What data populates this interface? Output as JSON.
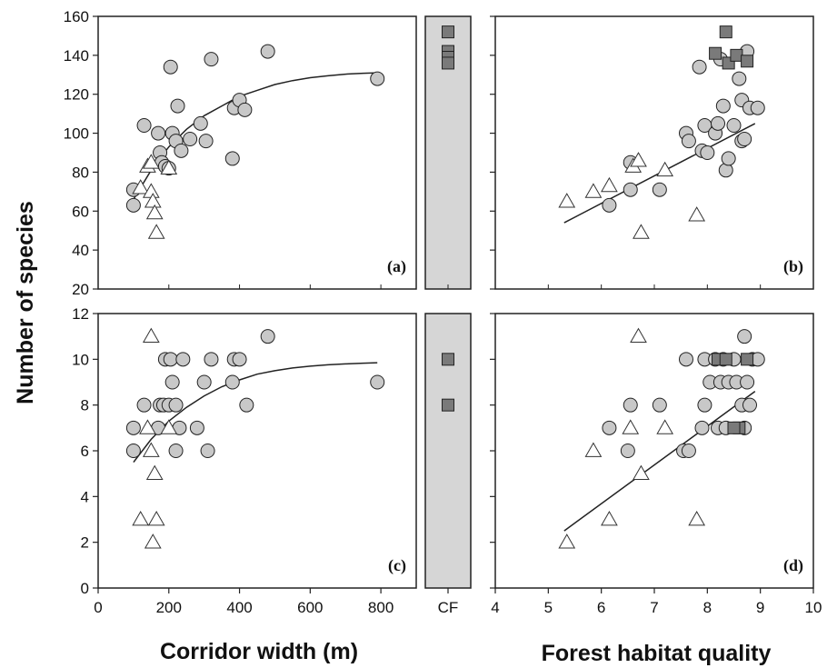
{
  "chart_data": [
    {
      "panel": "(a)",
      "type": "scatter",
      "xlabel": "Corridor width (m)",
      "ylabel": "Number of species",
      "xlim": [
        0,
        900
      ],
      "ylim": [
        20,
        160
      ],
      "xticks": [
        "0",
        "200",
        "400",
        "600",
        "800"
      ],
      "yticks": [
        "20",
        "40",
        "60",
        "80",
        "100",
        "120",
        "140",
        "160"
      ],
      "series": [
        {
          "marker": "circle",
          "color": "#c8c8c8",
          "points": [
            [
              100,
              71
            ],
            [
              100,
              63
            ],
            [
              130,
              104
            ],
            [
              170,
              100
            ],
            [
              175,
              90
            ],
            [
              180,
              85
            ],
            [
              190,
              83
            ],
            [
              200,
              82
            ],
            [
              205,
              134
            ],
            [
              210,
              100
            ],
            [
              220,
              96
            ],
            [
              225,
              114
            ],
            [
              235,
              91
            ],
            [
              260,
              97
            ],
            [
              290,
              105
            ],
            [
              305,
              96
            ],
            [
              320,
              138
            ],
            [
              380,
              87
            ],
            [
              385,
              113
            ],
            [
              400,
              117
            ],
            [
              415,
              112
            ],
            [
              480,
              142
            ],
            [
              790,
              128
            ]
          ]
        },
        {
          "marker": "triangle",
          "color": "#ffffff",
          "points": [
            [
              120,
              72
            ],
            [
              140,
              83
            ],
            [
              150,
              85
            ],
            [
              150,
              70
            ],
            [
              155,
              65
            ],
            [
              160,
              59
            ],
            [
              165,
              49
            ],
            [
              200,
              82
            ]
          ]
        }
      ],
      "fit": {
        "kind": "saturating",
        "x": [
          100,
          150,
          200,
          250,
          300,
          350,
          400,
          450,
          500,
          550,
          600,
          650,
          700,
          750,
          790
        ],
        "y": [
          66,
          81,
          93,
          102,
          109,
          114,
          119,
          122,
          125,
          127,
          128.5,
          129.5,
          130.3,
          130.8,
          131
        ]
      }
    },
    {
      "panel": "CF",
      "type": "scatter",
      "xticks": [
        "CF"
      ],
      "ylim": [
        20,
        160
      ],
      "series": [
        {
          "marker": "square",
          "color": "#7a7a7a",
          "points": [
            [
              0,
              152
            ],
            [
              0,
              142
            ],
            [
              0,
              139
            ],
            [
              0,
              136
            ]
          ]
        }
      ]
    },
    {
      "panel": "(b)",
      "type": "scatter",
      "xlabel": "Forest habitat quality",
      "xlim": [
        4,
        10
      ],
      "ylim": [
        20,
        160
      ],
      "xticks": [
        "4",
        "5",
        "6",
        "7",
        "8",
        "9",
        "10"
      ],
      "series": [
        {
          "marker": "circle",
          "color": "#c8c8c8",
          "points": [
            [
              6.15,
              63
            ],
            [
              6.55,
              85
            ],
            [
              6.55,
              71
            ],
            [
              7.1,
              71
            ],
            [
              7.6,
              100
            ],
            [
              7.65,
              96
            ],
            [
              7.85,
              134
            ],
            [
              7.9,
              91
            ],
            [
              7.95,
              104
            ],
            [
              8.0,
              90
            ],
            [
              8.15,
              100
            ],
            [
              8.2,
              105
            ],
            [
              8.25,
              138
            ],
            [
              8.3,
              114
            ],
            [
              8.35,
              81
            ],
            [
              8.4,
              87
            ],
            [
              8.5,
              104
            ],
            [
              8.6,
              128
            ],
            [
              8.65,
              117
            ],
            [
              8.65,
              96
            ],
            [
              8.7,
              97
            ],
            [
              8.75,
              142
            ],
            [
              8.8,
              113
            ],
            [
              8.95,
              113
            ]
          ]
        },
        {
          "marker": "triangle",
          "color": "#ffffff",
          "points": [
            [
              5.35,
              65
            ],
            [
              5.85,
              70
            ],
            [
              6.15,
              73
            ],
            [
              6.6,
              83
            ],
            [
              6.7,
              86
            ],
            [
              6.75,
              49
            ],
            [
              7.2,
              81
            ],
            [
              7.8,
              58
            ]
          ]
        },
        {
          "marker": "square",
          "color": "#7a7a7a",
          "points": [
            [
              8.15,
              141
            ],
            [
              8.35,
              152
            ],
            [
              8.4,
              136
            ],
            [
              8.55,
              140
            ],
            [
              8.75,
              137
            ]
          ]
        }
      ],
      "fit": {
        "kind": "linear",
        "x": [
          5.3,
          8.9
        ],
        "y": [
          54,
          105
        ]
      }
    },
    {
      "panel": "(c)",
      "type": "scatter",
      "xlabel": "Corridor width (m)",
      "ylabel": "Number of species",
      "xlim": [
        0,
        900
      ],
      "ylim": [
        0,
        12
      ],
      "xticks": [
        "0",
        "200",
        "400",
        "600",
        "800"
      ],
      "yticks": [
        "0",
        "2",
        "4",
        "6",
        "8",
        "10",
        "12"
      ],
      "series": [
        {
          "marker": "circle",
          "color": "#c8c8c8",
          "points": [
            [
              100,
              7
            ],
            [
              100,
              6
            ],
            [
              130,
              8
            ],
            [
              170,
              7
            ],
            [
              175,
              8
            ],
            [
              185,
              8
            ],
            [
              190,
              10
            ],
            [
              200,
              8
            ],
            [
              205,
              10
            ],
            [
              210,
              9
            ],
            [
              220,
              8
            ],
            [
              220,
              6
            ],
            [
              230,
              7
            ],
            [
              240,
              10
            ],
            [
              280,
              7
            ],
            [
              300,
              9
            ],
            [
              310,
              6
            ],
            [
              320,
              10
            ],
            [
              380,
              9
            ],
            [
              385,
              10
            ],
            [
              400,
              10
            ],
            [
              420,
              8
            ],
            [
              480,
              11
            ],
            [
              790,
              9
            ]
          ]
        },
        {
          "marker": "triangle",
          "color": "#ffffff",
          "points": [
            [
              120,
              3
            ],
            [
              140,
              7
            ],
            [
              150,
              11
            ],
            [
              150,
              6
            ],
            [
              155,
              2
            ],
            [
              160,
              5
            ],
            [
              165,
              3
            ],
            [
              200,
              7
            ]
          ]
        }
      ],
      "fit": {
        "kind": "saturating",
        "x": [
          100,
          150,
          200,
          250,
          300,
          350,
          400,
          450,
          500,
          550,
          600,
          650,
          700,
          750,
          790
        ],
        "y": [
          5.5,
          6.5,
          7.3,
          7.9,
          8.4,
          8.8,
          9.1,
          9.35,
          9.5,
          9.62,
          9.7,
          9.76,
          9.8,
          9.83,
          9.85
        ]
      }
    },
    {
      "panel": "CF",
      "type": "scatter",
      "xticks": [
        "CF"
      ],
      "ylim": [
        0,
        12
      ],
      "series": [
        {
          "marker": "square",
          "color": "#7a7a7a",
          "points": [
            [
              0,
              10
            ],
            [
              0,
              8
            ]
          ]
        }
      ]
    },
    {
      "panel": "(d)",
      "type": "scatter",
      "xlabel": "Forest habitat quality",
      "xlim": [
        4,
        10
      ],
      "ylim": [
        0,
        12
      ],
      "xticks": [
        "4",
        "5",
        "6",
        "7",
        "8",
        "9",
        "10"
      ],
      "series": [
        {
          "marker": "circle",
          "color": "#c8c8c8",
          "points": [
            [
              6.15,
              7
            ],
            [
              6.55,
              8
            ],
            [
              6.5,
              6
            ],
            [
              7.1,
              8
            ],
            [
              7.6,
              10
            ],
            [
              7.55,
              6
            ],
            [
              7.65,
              6
            ],
            [
              7.9,
              7
            ],
            [
              7.95,
              8
            ],
            [
              7.95,
              10
            ],
            [
              8.05,
              9
            ],
            [
              8.15,
              10
            ],
            [
              8.2,
              7
            ],
            [
              8.25,
              9
            ],
            [
              8.3,
              10
            ],
            [
              8.35,
              7
            ],
            [
              8.4,
              9
            ],
            [
              8.5,
              10
            ],
            [
              8.55,
              9
            ],
            [
              8.65,
              8
            ],
            [
              8.7,
              11
            ],
            [
              8.7,
              7
            ],
            [
              8.75,
              9
            ],
            [
              8.8,
              8
            ],
            [
              8.85,
              10
            ],
            [
              8.95,
              10
            ]
          ]
        },
        {
          "marker": "triangle",
          "color": "#ffffff",
          "points": [
            [
              5.35,
              2
            ],
            [
              5.85,
              6
            ],
            [
              6.15,
              3
            ],
            [
              6.55,
              7
            ],
            [
              6.7,
              11
            ],
            [
              6.75,
              5
            ],
            [
              7.2,
              7
            ],
            [
              7.8,
              3
            ]
          ]
        },
        {
          "marker": "square",
          "color": "#7a7a7a",
          "points": [
            [
              8.2,
              10
            ],
            [
              8.35,
              10
            ],
            [
              8.6,
              7
            ],
            [
              8.75,
              10
            ],
            [
              8.5,
              7
            ]
          ]
        }
      ],
      "fit": {
        "kind": "linear",
        "x": [
          5.3,
          8.9
        ],
        "y": [
          2.5,
          8.6
        ]
      }
    }
  ],
  "labels": {
    "ylabel": "Number of species",
    "xlabel_left": "Corridor width (m)",
    "xlabel_right": "Forest habitat quality",
    "cf_tick": "CF",
    "panel_a": "(a)",
    "panel_b": "(b)",
    "panel_c": "(c)",
    "panel_d": "(d)"
  },
  "colors": {
    "circle_fill": "#c8c8c8",
    "square_fill": "#7a7a7a",
    "triangle_fill": "#ffffff",
    "cf_band": "#d6d6d6",
    "stroke": "#222222"
  }
}
